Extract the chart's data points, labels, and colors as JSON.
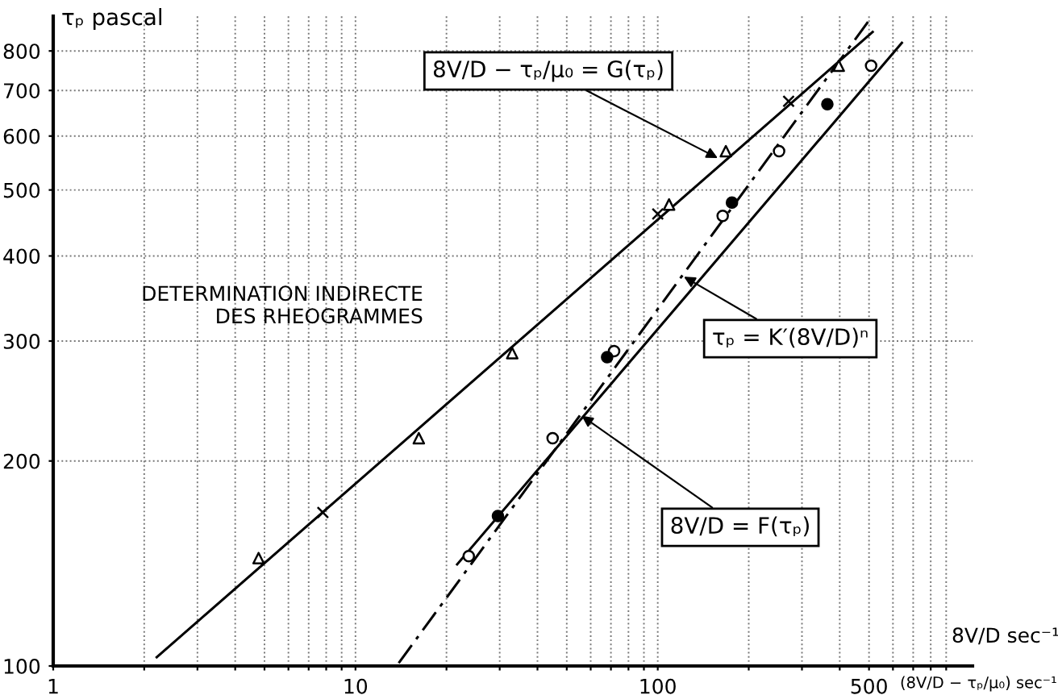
{
  "chart_data": {
    "type": "line",
    "ylabel": "τₚ pascal",
    "xlabel": "8V/D sec⁻¹",
    "log": "xy",
    "xlim": [
      1,
      1100
    ],
    "ylim": [
      100,
      900
    ],
    "xticks": [
      1,
      {
        "value": 2,
        "label": null
      },
      {
        "value": 3,
        "label": null
      },
      {
        "value": 4,
        "label": null
      },
      {
        "value": 5,
        "label": null
      },
      {
        "value": 6,
        "label": null
      },
      {
        "value": 7,
        "label": null
      },
      {
        "value": 8,
        "label": null
      },
      {
        "value": 9,
        "label": null
      },
      10,
      {
        "value": 20,
        "label": null
      },
      {
        "value": 30,
        "label": null
      },
      {
        "value": 40,
        "label": null
      },
      {
        "value": 50,
        "label": null
      },
      {
        "value": 60,
        "label": null
      },
      {
        "value": 70,
        "label": null
      },
      {
        "value": 80,
        "label": null
      },
      {
        "value": 90,
        "label": null
      },
      100,
      {
        "value": 200,
        "label": null
      },
      {
        "value": 300,
        "label": null
      },
      {
        "value": 400,
        "label": null
      },
      500,
      {
        "value": 600,
        "label": null
      },
      {
        "value": 700,
        "label": null
      },
      {
        "value": 800,
        "label": null
      },
      {
        "value": 900,
        "label": null
      }
    ],
    "yticks": [
      100,
      200,
      300,
      400,
      500,
      600,
      700,
      800
    ],
    "grid": true,
    "legend": false,
    "series": [
      {
        "color": "#000000",
        "marker": "none",
        "line_style": "solid",
        "x": [
          2.2,
          514
        ],
        "values": [
          103,
          853
        ]
      },
      {
        "type": "scatter",
        "color": "#ffffff",
        "marker": "triangle",
        "x": [
          4.78,
          16.2,
          33,
          109,
          168,
          397
        ],
        "values": [
          144,
          216,
          288,
          476,
          570,
          761
        ]
      },
      {
        "type": "scatter",
        "color": "#000000",
        "marker": "cross",
        "x": [
          7.8,
          100,
          271
        ],
        "values": [
          168,
          461,
          675
        ]
      },
      {
        "color": "#000000",
        "marker": "none",
        "line_style": "solid",
        "x": [
          21.7,
          642
        ],
        "values": [
          141,
          822
        ]
      },
      {
        "type": "scatter",
        "color": "#ffffff",
        "marker": "circle",
        "x": [
          23.7,
          44.9,
          71.7,
          164,
          252,
          508
        ],
        "values": [
          145,
          216,
          290,
          458,
          570,
          761
        ]
      },
      {
        "type": "scatter",
        "color": "#000000",
        "marker": "circle",
        "x": [
          29.6,
          68,
          176,
          364
        ],
        "values": [
          166,
          284,
          479,
          668
        ]
      },
      {
        "color": "#000000",
        "marker": "none",
        "line_style": "dashed",
        "x": [
          13.9,
          500
        ],
        "values": [
          101,
          887
        ]
      }
    ],
    "annotations": [
      {
        "text": "8V/D − τₚ/μ₀ = G(τₚ)",
        "x": 158,
        "y": 557
      },
      {
        "text": "τₚ = K′(8V/D)ⁿ",
        "x": 122,
        "y": 373
      },
      {
        "text": "8V/D = F(τₚ)",
        "x": 56,
        "y": 233
      },
      "DETERMINATION INDIRECTE\nDES RHEOGRAMMES",
      "(8V/D − τₚ/μ₀) sec⁻¹"
    ]
  }
}
